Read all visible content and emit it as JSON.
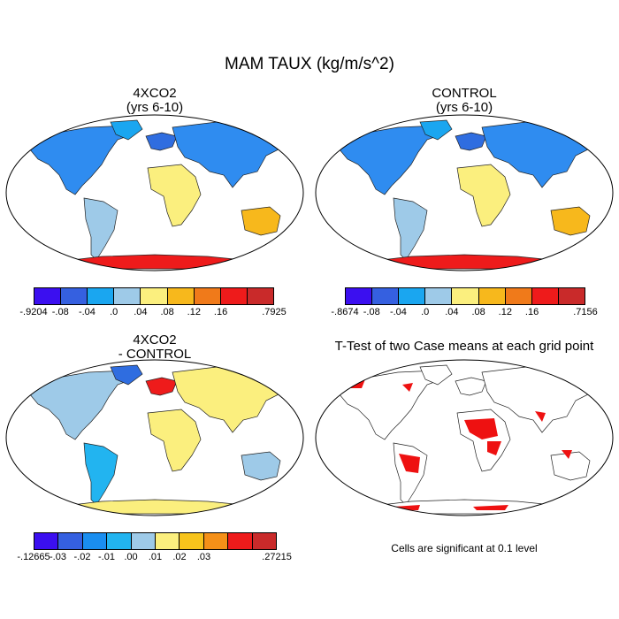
{
  "figure": {
    "title": "MAM TAUX (kg/m/s^2)"
  },
  "panels": {
    "top_left": {
      "title_line1": "4XCO2",
      "title_line2": "(yrs 6-10)"
    },
    "top_right": {
      "title_line1": "CONTROL",
      "title_line2": "(yrs 6-10)"
    },
    "bottom_left": {
      "title_line1": "4XCO2",
      "title_line2": "- CONTROL"
    },
    "bottom_right": {
      "title_line1": "T-Test of two Case means at each grid point",
      "note": "Cells are significant at 0.1 level"
    }
  },
  "colorbars": {
    "top_left": {
      "labels": [
        "-.9204",
        "-.08",
        "-.04",
        ".0",
        ".04",
        ".08",
        ".12",
        ".16",
        ".7925"
      ],
      "colors": [
        "#3b0ff0",
        "#3560e0",
        "#1aa6f0",
        "#9ecae8",
        "#fbef7e",
        "#f7b81c",
        "#f07a1a",
        "#ee1b1b",
        "#c92a2a"
      ]
    },
    "top_right": {
      "labels": [
        "-.8674",
        "-.08",
        "-.04",
        ".0",
        ".04",
        ".08",
        ".12",
        ".16",
        ".7156"
      ],
      "colors": [
        "#3b0ff0",
        "#3560e0",
        "#1aa6f0",
        "#9ecae8",
        "#fbef7e",
        "#f7b81c",
        "#f07a1a",
        "#ee1b1b",
        "#c92a2a"
      ]
    },
    "bottom_left": {
      "labels": [
        "-.12665",
        "-.03",
        "-.02",
        "-.01",
        ".00",
        ".01",
        ".02",
        ".03",
        ".27215"
      ],
      "colors": [
        "#3b0ff0",
        "#3560e0",
        "#1a8ef0",
        "#22b4f0",
        "#9ecae8",
        "#fbef7e",
        "#f7c41c",
        "#f59018",
        "#ee1b1b",
        "#c92a2a"
      ]
    }
  },
  "significance_color": "#ee1111"
}
